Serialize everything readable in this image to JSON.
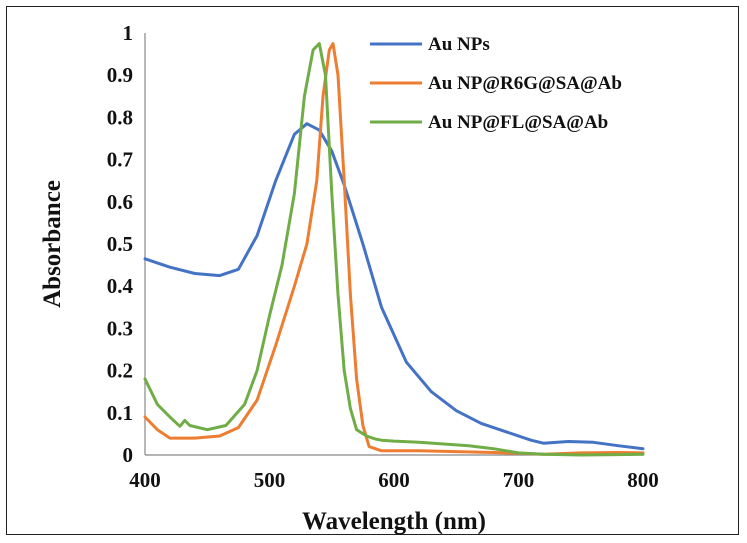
{
  "chart_data": {
    "type": "line",
    "title": "",
    "xlabel": "Wavelength (nm)",
    "ylabel": "Absorbance",
    "xlim": [
      400,
      800
    ],
    "ylim": [
      0,
      1
    ],
    "xticks": [
      "400",
      "500",
      "600",
      "700",
      "800"
    ],
    "yticks": [
      "0",
      "0.1",
      "0.2",
      "0.3",
      "0.4",
      "0.5",
      "0.6",
      "0.7",
      "0.8",
      "0.9",
      "1"
    ],
    "grid": false,
    "legend_position": "top-right",
    "series": [
      {
        "name": "Au NPs",
        "color": "#4472C4",
        "x": [
          400,
          420,
          440,
          460,
          475,
          490,
          505,
          520,
          530,
          540,
          550,
          560,
          575,
          590,
          610,
          630,
          650,
          670,
          690,
          710,
          720,
          740,
          760,
          780,
          800
        ],
        "y": [
          0.465,
          0.445,
          0.43,
          0.425,
          0.44,
          0.52,
          0.65,
          0.76,
          0.785,
          0.77,
          0.72,
          0.64,
          0.5,
          0.35,
          0.22,
          0.15,
          0.105,
          0.075,
          0.055,
          0.035,
          0.028,
          0.032,
          0.03,
          0.022,
          0.015
        ]
      },
      {
        "name": "Au NP@R6G@SA@Ab",
        "color": "#ED7D31",
        "x": [
          400,
          410,
          420,
          440,
          460,
          475,
          490,
          505,
          520,
          530,
          538,
          543,
          548,
          551,
          555,
          560,
          565,
          570,
          575,
          580,
          590,
          620,
          650,
          680,
          700,
          720,
          750,
          780,
          800
        ],
        "y": [
          0.09,
          0.06,
          0.04,
          0.04,
          0.045,
          0.065,
          0.13,
          0.26,
          0.4,
          0.5,
          0.65,
          0.85,
          0.96,
          0.975,
          0.9,
          0.65,
          0.38,
          0.18,
          0.07,
          0.02,
          0.01,
          0.01,
          0.008,
          0.006,
          0.004,
          0.002,
          0.005,
          0.006,
          0.005
        ]
      },
      {
        "name": "Au NP@FL@SA@Ab",
        "color": "#70AD47",
        "x": [
          400,
          410,
          420,
          428,
          432,
          436,
          450,
          465,
          480,
          490,
          500,
          510,
          520,
          528,
          535,
          540,
          545,
          550,
          555,
          560,
          565,
          570,
          578,
          585,
          590,
          600,
          620,
          640,
          660,
          680,
          690,
          700,
          720,
          750,
          780,
          800
        ],
        "y": [
          0.18,
          0.12,
          0.09,
          0.068,
          0.082,
          0.07,
          0.06,
          0.07,
          0.12,
          0.2,
          0.33,
          0.45,
          0.62,
          0.85,
          0.96,
          0.975,
          0.9,
          0.62,
          0.38,
          0.2,
          0.11,
          0.06,
          0.045,
          0.038,
          0.035,
          0.033,
          0.03,
          0.026,
          0.022,
          0.015,
          0.01,
          0.005,
          0.002,
          0.0,
          0.001,
          0.002
        ]
      }
    ]
  }
}
